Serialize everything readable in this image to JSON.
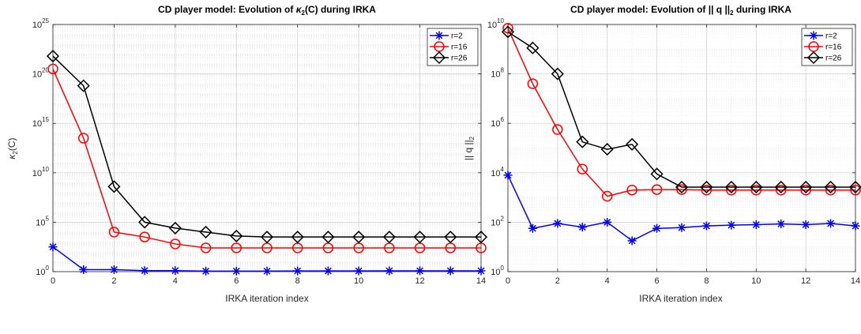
{
  "chart_data": [
    {
      "type": "line",
      "title_pre": "CD player model: Evolution of ",
      "title_kappa": "κ",
      "title_sub": "2",
      "title_post": "(C) during IRKA",
      "xlabel": "IRKA iteration index",
      "ylabel_kappa": "κ",
      "ylabel_sub": "2",
      "ylabel_post": "(C)",
      "yscale": "log",
      "xlim": [
        0,
        14
      ],
      "ylim_exp": [
        0,
        25
      ],
      "xticks": [
        "0",
        "2",
        "4",
        "6",
        "8",
        "10",
        "12",
        "14"
      ],
      "yticks": [
        {
          "base": "10",
          "exp": "0",
          "value": 0
        },
        {
          "base": "10",
          "exp": "5",
          "value": 5
        },
        {
          "base": "10",
          "exp": "10",
          "value": 10
        },
        {
          "base": "10",
          "exp": "15",
          "value": 15
        },
        {
          "base": "10",
          "exp": "20",
          "value": 20
        },
        {
          "base": "10",
          "exp": "25",
          "value": 25
        }
      ],
      "grid": true,
      "legend_position": "top-right",
      "x": [
        0,
        1,
        2,
        3,
        4,
        5,
        6,
        7,
        8,
        9,
        10,
        11,
        12,
        13,
        14
      ],
      "series": [
        {
          "name": "r=2",
          "color": "#0000ff",
          "marker": "asterisk",
          "log10_values": [
            2.5,
            0.2,
            0.2,
            0.1,
            0.1,
            0.05,
            0.05,
            0.05,
            0.07,
            0.07,
            0.07,
            0.08,
            0.08,
            0.08,
            0.08
          ]
        },
        {
          "name": "r=16",
          "color": "#ff0000",
          "marker": "circle",
          "log10_values": [
            20.5,
            13.5,
            4.0,
            3.5,
            2.8,
            2.4,
            2.4,
            2.4,
            2.4,
            2.4,
            2.4,
            2.4,
            2.4,
            2.4,
            2.4
          ]
        },
        {
          "name": "r=26",
          "color": "#000000",
          "marker": "diamond",
          "log10_values": [
            21.8,
            18.8,
            8.6,
            5.0,
            4.4,
            4.0,
            3.6,
            3.5,
            3.5,
            3.5,
            3.5,
            3.5,
            3.5,
            3.5,
            3.5
          ]
        }
      ]
    },
    {
      "type": "line",
      "title_pre": "CD player model: Evolution of || q ||",
      "title_sub": "2",
      "title_post": " during IRKA",
      "xlabel": "IRKA iteration index",
      "ylabel_pre": "|| q ||",
      "ylabel_sub": "2",
      "yscale": "log",
      "xlim": [
        0,
        14
      ],
      "ylim_exp": [
        0,
        10
      ],
      "xticks": [
        "0",
        "2",
        "4",
        "6",
        "8",
        "10",
        "12",
        "14"
      ],
      "yticks": [
        {
          "base": "10",
          "exp": "0",
          "value": 0
        },
        {
          "base": "10",
          "exp": "2",
          "value": 2
        },
        {
          "base": "10",
          "exp": "4",
          "value": 4
        },
        {
          "base": "10",
          "exp": "6",
          "value": 6
        },
        {
          "base": "10",
          "exp": "8",
          "value": 8
        },
        {
          "base": "10",
          "exp": "10",
          "value": 10
        }
      ],
      "grid": true,
      "legend_position": "top-right",
      "x": [
        0,
        1,
        2,
        3,
        4,
        5,
        6,
        7,
        8,
        9,
        10,
        11,
        12,
        13,
        14
      ],
      "series": [
        {
          "name": "r=2",
          "color": "#0000ff",
          "marker": "asterisk",
          "log10_values": [
            3.9,
            1.75,
            1.95,
            1.8,
            2.0,
            1.25,
            1.75,
            1.78,
            1.85,
            1.88,
            1.9,
            1.93,
            1.9,
            1.95,
            1.85
          ]
        },
        {
          "name": "r=16",
          "color": "#ff0000",
          "marker": "circle",
          "log10_values": [
            9.85,
            7.6,
            5.75,
            4.15,
            3.05,
            3.3,
            3.32,
            3.32,
            3.3,
            3.3,
            3.3,
            3.3,
            3.3,
            3.3,
            3.3
          ]
        },
        {
          "name": "r=26",
          "color": "#000000",
          "marker": "diamond",
          "log10_values": [
            9.7,
            9.05,
            8.0,
            5.25,
            4.95,
            5.15,
            3.95,
            3.42,
            3.42,
            3.42,
            3.42,
            3.42,
            3.42,
            3.42,
            3.42
          ]
        }
      ]
    }
  ]
}
